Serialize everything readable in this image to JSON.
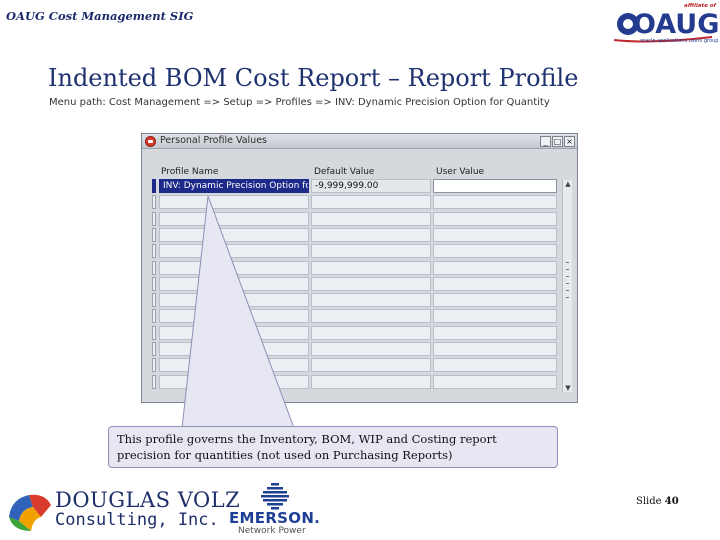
{
  "header": {
    "sig_title": "OAUG Cost Management SIG",
    "oaug_logo": {
      "affiliate_text": "affiliate of",
      "word": "OAUG",
      "tagline": "oracle applications users group"
    }
  },
  "slide": {
    "title": "Indented BOM Cost Report – Report Profile",
    "menu_path": "Menu path:  Cost Management => Setup => Profiles => INV:  Dynamic Precision Option for Quantity"
  },
  "form": {
    "window_title": "Personal Profile Values",
    "window_buttons": {
      "minimize": "_",
      "maximize": "□",
      "close": "×"
    },
    "columns": {
      "profile_name": "Profile Name",
      "default_value": "Default Value",
      "user_value": "User Value"
    },
    "rows": [
      {
        "profile_name": "INV: Dynamic Precision Option for",
        "default_value": "-9,999,999.00",
        "user_value": ""
      },
      {
        "profile_name": "",
        "default_value": "",
        "user_value": ""
      },
      {
        "profile_name": "",
        "default_value": "",
        "user_value": ""
      },
      {
        "profile_name": "",
        "default_value": "",
        "user_value": ""
      },
      {
        "profile_name": "",
        "default_value": "",
        "user_value": ""
      },
      {
        "profile_name": "",
        "default_value": "",
        "user_value": ""
      },
      {
        "profile_name": "",
        "default_value": "",
        "user_value": ""
      },
      {
        "profile_name": "",
        "default_value": "",
        "user_value": ""
      },
      {
        "profile_name": "",
        "default_value": "",
        "user_value": ""
      },
      {
        "profile_name": "",
        "default_value": "",
        "user_value": ""
      },
      {
        "profile_name": "",
        "default_value": "",
        "user_value": ""
      },
      {
        "profile_name": "",
        "default_value": "",
        "user_value": ""
      },
      {
        "profile_name": "",
        "default_value": "",
        "user_value": ""
      }
    ],
    "scroll_arrows": {
      "up": "▲",
      "down": "▼"
    }
  },
  "callout": {
    "text": "This profile governs the Inventory, BOM, WIP and Costing report precision for quantities (not used on Purchasing Reports)"
  },
  "footer": {
    "douglas_volz": {
      "name": "DOUGLAS VOLZ",
      "sub": "Consulting, Inc."
    },
    "emerson": {
      "name": "EMERSON.",
      "sub": "Network Power"
    },
    "slide_label": "Slide",
    "slide_number": "40"
  },
  "colors": {
    "title_blue": "#1f3270",
    "selection_navy": "#1d2a8a",
    "callout_fill": "#e7e7f3",
    "oaug_red": "#c0282d",
    "oaug_blue": "#243c8f"
  }
}
